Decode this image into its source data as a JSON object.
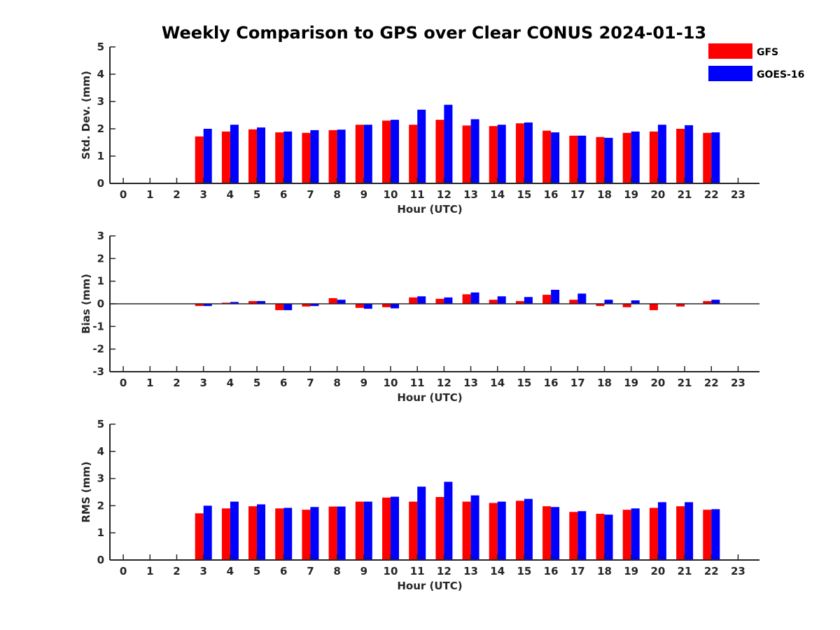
{
  "title": "Weekly Comparison to GPS over Clear CONUS 2024-01-13",
  "legend": {
    "placement": "top-right",
    "items": [
      {
        "name": "GFS",
        "color": "#ff0000"
      },
      {
        "name": "GOES-16",
        "color": "#0000ff"
      }
    ]
  },
  "chart_data": [
    {
      "type": "bar",
      "xlabel": "Hour (UTC)",
      "ylabel": "Std. Dev. (mm)",
      "xlim": [
        -0.5,
        23.8
      ],
      "ylim": [
        0,
        5
      ],
      "yticks": [
        0,
        1,
        2,
        3,
        4,
        5
      ],
      "categories": [
        "0",
        "1",
        "2",
        "3",
        "4",
        "5",
        "6",
        "7",
        "8",
        "9",
        "10",
        "11",
        "12",
        "13",
        "14",
        "15",
        "16",
        "17",
        "18",
        "19",
        "20",
        "21",
        "22",
        "23"
      ],
      "series": [
        {
          "name": "GFS",
          "color": "#ff0000",
          "values": [
            null,
            null,
            null,
            1.72,
            1.9,
            1.98,
            1.87,
            1.85,
            1.95,
            2.15,
            2.3,
            2.15,
            2.33,
            2.12,
            2.1,
            2.2,
            1.93,
            1.75,
            1.7,
            1.85,
            1.9,
            2.0,
            1.85,
            null
          ]
        },
        {
          "name": "GOES-16",
          "color": "#0000ff",
          "values": [
            null,
            null,
            null,
            2.0,
            2.15,
            2.05,
            1.9,
            1.95,
            1.97,
            2.15,
            2.33,
            2.7,
            2.88,
            2.35,
            2.15,
            2.23,
            1.87,
            1.75,
            1.67,
            1.9,
            2.15,
            2.13,
            1.87,
            null
          ]
        }
      ]
    },
    {
      "type": "bar",
      "xlabel": "Hour (UTC)",
      "ylabel": "Bias (mm)",
      "xlim": [
        -0.5,
        23.8
      ],
      "ylim": [
        -3,
        3
      ],
      "yticks": [
        -3,
        -2,
        -1,
        0,
        1,
        2,
        3
      ],
      "zero_line": true,
      "categories": [
        "0",
        "1",
        "2",
        "3",
        "4",
        "5",
        "6",
        "7",
        "8",
        "9",
        "10",
        "11",
        "12",
        "13",
        "14",
        "15",
        "16",
        "17",
        "18",
        "19",
        "20",
        "21",
        "22",
        "23"
      ],
      "series": [
        {
          "name": "GFS",
          "color": "#ff0000",
          "values": [
            null,
            null,
            null,
            -0.1,
            0.05,
            0.12,
            -0.28,
            -0.12,
            0.25,
            -0.18,
            -0.15,
            0.28,
            0.22,
            0.42,
            0.18,
            0.12,
            0.4,
            0.18,
            -0.1,
            -0.15,
            -0.28,
            -0.12,
            0.12,
            null
          ]
        },
        {
          "name": "GOES-16",
          "color": "#0000ff",
          "values": [
            null,
            null,
            null,
            -0.1,
            0.08,
            0.12,
            -0.28,
            -0.1,
            0.18,
            -0.22,
            -0.2,
            0.33,
            0.28,
            0.5,
            0.33,
            0.3,
            0.62,
            0.45,
            0.18,
            0.15,
            null,
            null,
            0.18,
            null
          ]
        }
      ]
    },
    {
      "type": "bar",
      "xlabel": "Hour (UTC)",
      "ylabel": "RMS (mm)",
      "xlim": [
        -0.5,
        23.8
      ],
      "ylim": [
        0,
        5
      ],
      "yticks": [
        0,
        1,
        2,
        3,
        4,
        5
      ],
      "categories": [
        "0",
        "1",
        "2",
        "3",
        "4",
        "5",
        "6",
        "7",
        "8",
        "9",
        "10",
        "11",
        "12",
        "13",
        "14",
        "15",
        "16",
        "17",
        "18",
        "19",
        "20",
        "21",
        "22",
        "23"
      ],
      "series": [
        {
          "name": "GFS",
          "color": "#ff0000",
          "values": [
            null,
            null,
            null,
            1.72,
            1.9,
            1.98,
            1.9,
            1.85,
            1.97,
            2.15,
            2.3,
            2.15,
            2.32,
            2.15,
            2.1,
            2.18,
            1.98,
            1.77,
            1.7,
            1.85,
            1.92,
            1.98,
            1.85,
            null
          ]
        },
        {
          "name": "GOES-16",
          "color": "#0000ff",
          "values": [
            null,
            null,
            null,
            2.0,
            2.15,
            2.05,
            1.92,
            1.95,
            1.97,
            2.15,
            2.33,
            2.7,
            2.88,
            2.38,
            2.15,
            2.25,
            1.95,
            1.8,
            1.67,
            1.9,
            2.13,
            2.13,
            1.87,
            null
          ]
        }
      ]
    }
  ]
}
